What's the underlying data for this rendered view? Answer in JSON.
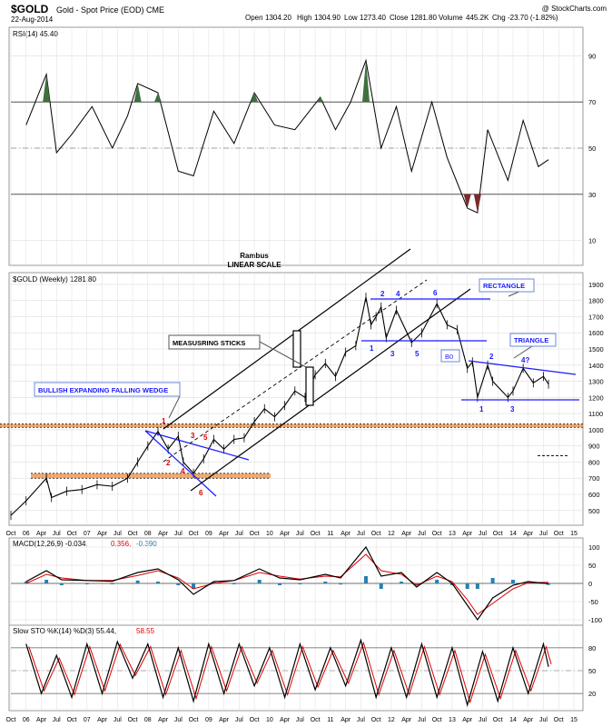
{
  "header": {
    "symbol": "$GOLD",
    "description": "Gold - Spot Price (EOD)  CME",
    "date": "22-Aug-2014",
    "copyright": "@ StockCharts.com",
    "quote": {
      "open_label": "Open",
      "open": "1304.20",
      "high_label": "High",
      "high": "1304.90",
      "low_label": "Low",
      "low": "1273.40",
      "close_label": "Close",
      "close": "1281.80",
      "volume_label": "Volume",
      "volume": "445.2K",
      "chg_label": "Chg",
      "chg": "-23.70 (-1.82%)"
    }
  },
  "colors": {
    "price": "#000000",
    "annotation_blue": "#1a1aff",
    "annotation_red": "#e00000",
    "support_orange": "#f0a060",
    "rsi_fill": "#3f6f3f",
    "macd_signal": "#e00000",
    "histogram": "#2a7fb0",
    "grid": "#dddddd"
  },
  "chart_data": [
    {
      "type": "line",
      "name": "rsi-panel",
      "legend": "RSI(14) 45.40",
      "ylim": [
        0,
        100
      ],
      "y_ticks": [
        "10",
        "30",
        "50",
        "70",
        "90"
      ],
      "reference_lines": [
        30,
        50,
        70
      ],
      "x": [
        "2006-01",
        "2006-05",
        "2006-07",
        "2006-10",
        "2007-02",
        "2007-06",
        "2007-09",
        "2007-11",
        "2008-03",
        "2008-07",
        "2008-10",
        "2009-02",
        "2009-06",
        "2009-10",
        "2010-02",
        "2010-06",
        "2010-11",
        "2011-02",
        "2011-05",
        "2011-08",
        "2011-11",
        "2012-02",
        "2012-05",
        "2012-09",
        "2012-12",
        "2013-04",
        "2013-06",
        "2013-08",
        "2013-12",
        "2014-03",
        "2014-06",
        "2014-08"
      ],
      "values": [
        60,
        82,
        48,
        56,
        68,
        50,
        64,
        78,
        74,
        40,
        38,
        66,
        52,
        74,
        60,
        58,
        72,
        58,
        70,
        88,
        50,
        68,
        40,
        70,
        46,
        24,
        22,
        58,
        36,
        62,
        42,
        45
      ]
    },
    {
      "type": "line",
      "name": "price-panel",
      "legend": "$GOLD (Weekly) 1281.80",
      "scale_label": "Rambus",
      "scale_sublabel": "LINEAR SCALE",
      "ylim": [
        420,
        1950
      ],
      "y_ticks": [
        "500",
        "600",
        "700",
        "800",
        "900",
        "1000",
        "1100",
        "1200",
        "1300",
        "1400",
        "1500",
        "1600",
        "1700",
        "1800",
        "1900"
      ],
      "x_ticks": [
        "Oct",
        "06",
        "Apr",
        "Jul",
        "Oct",
        "07",
        "Apr",
        "Jul",
        "Oct",
        "08",
        "Apr",
        "Jul",
        "Oct",
        "09",
        "Apr",
        "Jul",
        "Oct",
        "10",
        "Apr",
        "Jul",
        "Oct",
        "11",
        "Apr",
        "Jul",
        "Oct",
        "12",
        "Apr",
        "Jul",
        "Oct",
        "13",
        "Apr",
        "Jul",
        "Oct",
        "14",
        "Apr",
        "Jul",
        "Oct",
        "15"
      ],
      "x": [
        "2005-10",
        "2006-01",
        "2006-05",
        "2006-06",
        "2006-09",
        "2006-12",
        "2007-03",
        "2007-06",
        "2007-09",
        "2007-11",
        "2008-01",
        "2008-03",
        "2008-05",
        "2008-07",
        "2008-08",
        "2008-10",
        "2008-12",
        "2009-02",
        "2009-04",
        "2009-06",
        "2009-08",
        "2009-10",
        "2009-12",
        "2010-02",
        "2010-04",
        "2010-06",
        "2010-08",
        "2010-10",
        "2010-12",
        "2011-02",
        "2011-04",
        "2011-06",
        "2011-08",
        "2011-09",
        "2011-10",
        "2011-11",
        "2011-12",
        "2012-02",
        "2012-05",
        "2012-07",
        "2012-10",
        "2012-12",
        "2013-02",
        "2013-04",
        "2013-05",
        "2013-06",
        "2013-08",
        "2013-09",
        "2013-12",
        "2014-01",
        "2014-03",
        "2014-05",
        "2014-07",
        "2014-08"
      ],
      "values": [
        470,
        560,
        700,
        580,
        620,
        630,
        660,
        650,
        700,
        800,
        900,
        990,
        880,
        960,
        800,
        730,
        820,
        940,
        880,
        940,
        950,
        1050,
        1130,
        1080,
        1150,
        1240,
        1200,
        1340,
        1410,
        1330,
        1480,
        1520,
        1820,
        1650,
        1700,
        1760,
        1570,
        1740,
        1540,
        1600,
        1780,
        1650,
        1620,
        1380,
        1420,
        1200,
        1400,
        1300,
        1200,
        1240,
        1380,
        1290,
        1330,
        1282
      ],
      "annotations": {
        "wedge": "BULLISH EXPANDING FALLING WEDGE",
        "sticks": "MEASUSRING STICKS",
        "rectangle": "RECTANGLE",
        "triangle": "TRIANGLE",
        "bo": "B0",
        "wedge_pts": [
          "1",
          "2",
          "3",
          "4",
          "5",
          "6"
        ],
        "rect_pts": [
          "1",
          "2",
          "3",
          "4",
          "5",
          "6"
        ],
        "tri_pts": [
          "1",
          "2",
          "3",
          "4?"
        ]
      }
    },
    {
      "type": "line",
      "name": "macd-panel",
      "legend_main": "MACD(12,26,9) -0.034,",
      "legend_signal": "0.356,",
      "legend_hist": "-0.390",
      "ylim": [
        -110,
        110
      ],
      "y_ticks": [
        "100",
        "50",
        "0",
        "-50",
        "-100"
      ],
      "x": [
        "2006-01",
        "2006-05",
        "2006-08",
        "2007-01",
        "2007-06",
        "2007-11",
        "2008-03",
        "2008-07",
        "2008-10",
        "2009-02",
        "2009-06",
        "2009-11",
        "2010-03",
        "2010-07",
        "2010-12",
        "2011-03",
        "2011-08",
        "2011-11",
        "2012-03",
        "2012-06",
        "2012-10",
        "2013-01",
        "2013-04",
        "2013-06",
        "2013-09",
        "2014-01",
        "2014-04",
        "2014-08"
      ],
      "values": [
        5,
        35,
        10,
        8,
        6,
        30,
        40,
        10,
        -30,
        5,
        8,
        40,
        15,
        10,
        25,
        15,
        100,
        20,
        30,
        -10,
        30,
        0,
        -60,
        -100,
        -40,
        -5,
        5,
        -1
      ],
      "signal": [
        0,
        25,
        15,
        8,
        8,
        22,
        35,
        15,
        -15,
        0,
        8,
        30,
        20,
        12,
        20,
        18,
        80,
        35,
        25,
        -5,
        20,
        5,
        -45,
        -85,
        -55,
        -15,
        2,
        3
      ]
    },
    {
      "type": "line",
      "name": "sto-panel",
      "legend_main": "Slow STO %K(14) %D(3) 55.44,",
      "legend_d": "58.55",
      "ylim": [
        0,
        100
      ],
      "y_ticks": [
        "80",
        "50",
        "20"
      ],
      "x": [
        "2006-01",
        "2006-04",
        "2006-07",
        "2006-10",
        "2007-01",
        "2007-04",
        "2007-07",
        "2007-10",
        "2008-01",
        "2008-04",
        "2008-07",
        "2008-10",
        "2009-01",
        "2009-04",
        "2009-07",
        "2009-10",
        "2010-01",
        "2010-04",
        "2010-07",
        "2010-10",
        "2011-01",
        "2011-04",
        "2011-07",
        "2011-10",
        "2012-01",
        "2012-04",
        "2012-07",
        "2012-10",
        "2013-01",
        "2013-04",
        "2013-07",
        "2013-10",
        "2014-01",
        "2014-04",
        "2014-07",
        "2014-08"
      ],
      "values": [
        85,
        20,
        70,
        15,
        85,
        20,
        88,
        40,
        85,
        15,
        80,
        10,
        85,
        20,
        85,
        30,
        80,
        15,
        85,
        25,
        80,
        30,
        90,
        15,
        80,
        15,
        85,
        15,
        80,
        5,
        75,
        10,
        80,
        20,
        85,
        55
      ]
    }
  ]
}
